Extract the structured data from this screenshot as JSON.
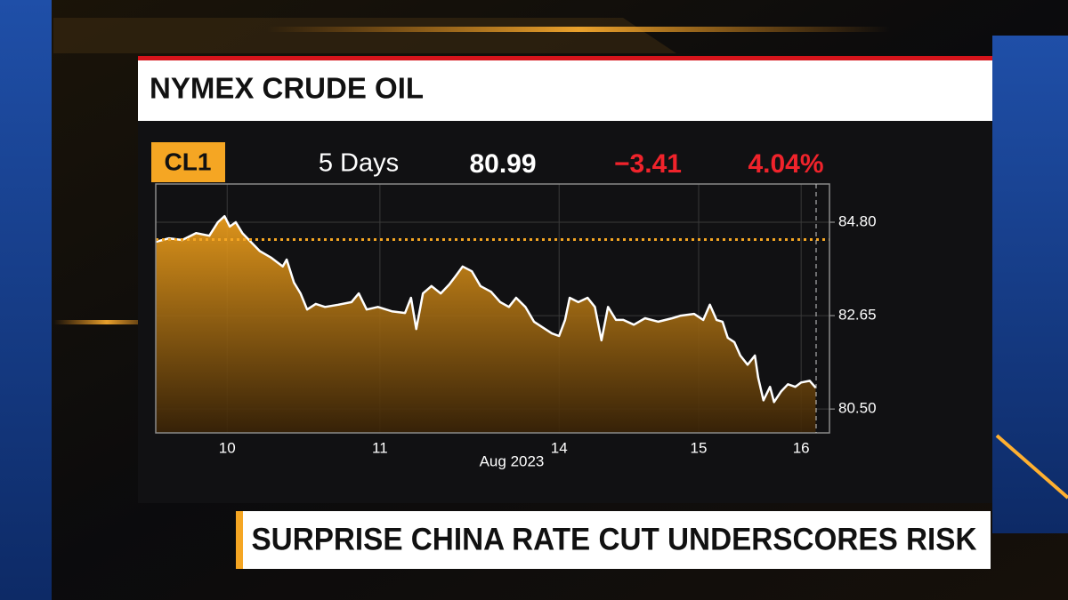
{
  "quote": {
    "ticker": "CL1",
    "period": "5 Days",
    "last": "80.99",
    "change": "−3.41",
    "change_pct": "4.04%"
  },
  "headline": "SURPRISE CHINA RATE CUT UNDERSCORES RISK",
  "chart_data": {
    "type": "area",
    "title": "NYMEX CRUDE OIL",
    "x_label": "Aug 2023",
    "series": [
      {
        "color": "#ffffff",
        "area_color": "#f3a21c",
        "x": [
          0,
          2.0,
          4.0,
          6.1,
          8.1,
          9.4,
          10.4,
          11.2,
          12.1,
          13.1,
          14.1,
          15.7,
          17.5,
          19.2,
          19.8,
          20.9,
          21.9,
          22.9,
          24.2,
          25.6,
          27.6,
          29.6,
          30.7,
          31.9,
          33.6,
          35.7,
          37.7,
          38.6,
          39.4,
          40.4,
          41.7,
          43.1,
          44.4,
          45.4,
          46.4,
          47.8,
          49.1,
          50.7,
          52.1,
          53.4,
          54.5,
          55.9,
          57.2,
          58.5,
          59.9,
          61.0,
          61.9,
          62.6,
          63.9,
          65.3,
          66.4,
          67.4,
          68.4,
          69.6,
          70.7,
          72.3,
          74.0,
          76.0,
          78.1,
          79.4,
          81.4,
          82.8,
          83.8,
          84.8,
          85.7,
          86.5,
          87.5,
          88.4,
          89.5,
          90.6,
          91.1,
          91.9,
          92.9,
          93.5,
          94.6,
          95.6,
          96.7,
          97.6,
          98.9,
          99.8
        ],
        "values": [
          84.35,
          84.43,
          84.39,
          84.55,
          84.49,
          84.8,
          84.94,
          84.7,
          84.8,
          84.55,
          84.39,
          84.14,
          83.98,
          83.78,
          83.94,
          83.41,
          83.16,
          82.79,
          82.92,
          82.85,
          82.9,
          82.96,
          83.16,
          82.79,
          82.85,
          82.75,
          82.71,
          83.06,
          82.34,
          83.16,
          83.33,
          83.16,
          83.37,
          83.57,
          83.78,
          83.67,
          83.33,
          83.2,
          82.96,
          82.85,
          83.06,
          82.85,
          82.51,
          82.38,
          82.24,
          82.18,
          82.55,
          83.06,
          82.96,
          83.06,
          82.85,
          82.08,
          82.85,
          82.55,
          82.55,
          82.44,
          82.59,
          82.51,
          82.59,
          82.65,
          82.69,
          82.55,
          82.9,
          82.55,
          82.51,
          82.14,
          82.04,
          81.73,
          81.52,
          81.73,
          81.22,
          80.7,
          81.01,
          80.66,
          80.91,
          81.07,
          81.01,
          81.11,
          81.15,
          80.99
        ]
      }
    ],
    "reference_line": {
      "value": 84.4,
      "color": "#f5a623"
    },
    "xlim": [
      0,
      100
    ],
    "xticks": [
      {
        "value": 10.8,
        "label": "10"
      },
      {
        "value": 33.9,
        "label": "11"
      },
      {
        "value": 61.0,
        "label": "14"
      },
      {
        "value": 82.1,
        "label": "15"
      },
      {
        "value": 97.6,
        "label": "16"
      }
    ],
    "ylim": [
      79.95,
      85.68
    ],
    "yticks": [
      {
        "value": 80.5,
        "label": "80.50"
      },
      82.65,
      {
        "value": 84.8,
        "label": "84.80"
      }
    ],
    "grid": true
  }
}
